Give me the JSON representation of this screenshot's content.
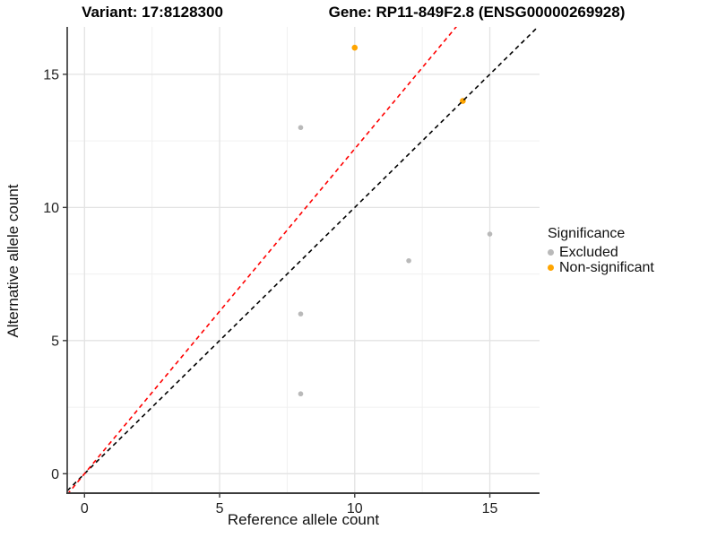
{
  "header": {
    "variant_title": "Variant: 17:8128300",
    "gene_title": "Gene: RP11-849F2.8 (ENSG00000269928)"
  },
  "chart_data": {
    "type": "scatter",
    "xlabel": "Reference allele count",
    "ylabel": "Alternative allele count",
    "x_ticks": [
      0,
      5,
      10,
      15
    ],
    "y_ticks": [
      0,
      5,
      10,
      15
    ],
    "x_minor_ticks": [
      2.5,
      7.5,
      12.5
    ],
    "y_minor_ticks": [
      2.5,
      7.5,
      12.5
    ],
    "x_range": [
      -0.64,
      16.84
    ],
    "y_range": [
      -0.73,
      16.78
    ],
    "grid": true,
    "legend_position": "right",
    "series": [
      {
        "name": "Excluded",
        "color": "#b9b9b9",
        "marker_radius": 2.8,
        "points": [
          [
            8,
            3
          ],
          [
            8,
            6
          ],
          [
            8,
            13
          ],
          [
            12,
            8
          ],
          [
            15,
            9
          ]
        ]
      },
      {
        "name": "Non-significant",
        "color": "#ffa500",
        "marker_radius": 3.3,
        "points": [
          [
            10,
            16
          ],
          [
            14,
            14
          ]
        ]
      }
    ],
    "reference_lines": [
      {
        "name": "identity",
        "slope": 1,
        "intercept": 0,
        "color": "#000000",
        "style": "dashed"
      },
      {
        "name": "expected-ratio",
        "slope": 1.22,
        "intercept": 0,
        "color": "#ff0000",
        "style": "dashed"
      }
    ]
  },
  "legend": {
    "title": "Significance",
    "items": [
      {
        "label": "Excluded",
        "color": "#b9b9b9"
      },
      {
        "label": "Non-significant",
        "color": "#ffa500"
      }
    ]
  },
  "colors": {
    "grid_major": "#e3e3e3",
    "grid_minor": "#f0f0f0",
    "axis_line": "#3c3c3c",
    "tick_label": "#222222"
  }
}
